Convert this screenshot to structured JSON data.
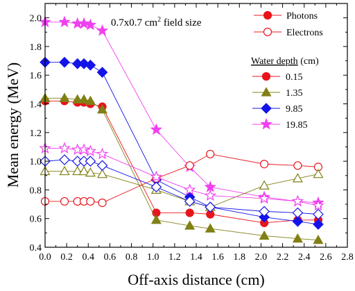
{
  "chart_data": {
    "type": "line",
    "xlabel": "Off-axis distance (cm)",
    "ylabel": "Mean energy (MeV)",
    "xlim": [
      0.0,
      2.8
    ],
    "ylim": [
      0.4,
      2.1
    ],
    "x_ticks": [
      "0.0",
      "0.2",
      "0.4",
      "0.6",
      "0.8",
      "1.0",
      "1.2",
      "1.4",
      "1.6",
      "1.8",
      "2.0",
      "2.2",
      "2.4",
      "2.6",
      "2.8"
    ],
    "y_ticks": [
      "0.4",
      "0.6",
      "0.8",
      "1.0",
      "1.2",
      "1.4",
      "1.6",
      "1.8",
      "2.0"
    ],
    "grid": false,
    "annotation": {
      "text": "0.7x0.7 cm",
      "superscript": "2",
      "suffix": " field size"
    },
    "legend_type": {
      "placement": "top-right",
      "entries": [
        {
          "label": "Photons",
          "style": "filled"
        },
        {
          "label": "Electrons",
          "style": "open"
        }
      ]
    },
    "legend_depth": {
      "placement": "right",
      "title": "Water depth",
      "title_unit": " (cm)",
      "entries": [
        {
          "label": "0.15",
          "color": "#e8141c",
          "marker": "circle"
        },
        {
          "label": "1.35",
          "color": "#808014",
          "marker": "triangle"
        },
        {
          "label": "9.85",
          "color": "#1414e8",
          "marker": "diamond"
        },
        {
          "label": "19.85",
          "color": "#f040f0",
          "marker": "star"
        }
      ]
    },
    "x": [
      0.0,
      0.18,
      0.3,
      0.36,
      0.42,
      0.53,
      1.03,
      1.34,
      1.53,
      2.03,
      2.34,
      2.53
    ],
    "series": [
      {
        "group": "Photons",
        "depth": "0.15",
        "color": "#e8141c",
        "marker": "circle",
        "filled": true,
        "values": [
          1.42,
          1.42,
          1.41,
          1.41,
          1.4,
          1.38,
          0.64,
          0.64,
          0.63,
          0.57,
          0.59,
          0.59
        ]
      },
      {
        "group": "Photons",
        "depth": "1.35",
        "color": "#808014",
        "marker": "triangle",
        "filled": true,
        "values": [
          1.44,
          1.44,
          1.43,
          1.43,
          1.42,
          1.36,
          0.59,
          0.55,
          0.53,
          0.48,
          0.46,
          0.45
        ]
      },
      {
        "group": "Photons",
        "depth": "9.85",
        "color": "#1414e8",
        "marker": "diamond",
        "filled": true,
        "values": [
          1.69,
          1.69,
          1.68,
          1.68,
          1.67,
          1.62,
          0.87,
          0.75,
          0.68,
          0.61,
          0.58,
          0.56
        ]
      },
      {
        "group": "Photons",
        "depth": "19.85",
        "color": "#f040f0",
        "marker": "star",
        "filled": true,
        "values": [
          1.97,
          1.97,
          1.96,
          1.96,
          1.95,
          1.91,
          1.22,
          0.96,
          0.82,
          0.75,
          0.72,
          0.71
        ]
      },
      {
        "group": "Electrons",
        "depth": "0.15",
        "color": "#e8141c",
        "marker": "circle",
        "filled": false,
        "values": [
          0.72,
          0.72,
          0.72,
          0.72,
          0.72,
          0.71,
          0.88,
          0.97,
          1.05,
          0.98,
          0.97,
          0.96
        ]
      },
      {
        "group": "Electrons",
        "depth": "1.35",
        "color": "#808014",
        "marker": "triangle",
        "filled": false,
        "values": [
          0.93,
          0.93,
          0.93,
          0.93,
          0.92,
          0.91,
          0.8,
          0.72,
          0.68,
          0.83,
          0.88,
          0.91
        ]
      },
      {
        "group": "Electrons",
        "depth": "9.85",
        "color": "#1414e8",
        "marker": "diamond",
        "filled": false,
        "values": [
          1.0,
          1.01,
          1.0,
          1.0,
          1.0,
          0.97,
          0.82,
          0.72,
          0.68,
          0.65,
          0.64,
          0.63
        ]
      },
      {
        "group": "Electrons",
        "depth": "19.85",
        "color": "#f040f0",
        "marker": "star",
        "filled": false,
        "values": [
          1.09,
          1.09,
          1.08,
          1.08,
          1.07,
          1.05,
          0.89,
          0.8,
          0.76,
          0.74,
          0.72,
          0.69
        ]
      }
    ]
  }
}
